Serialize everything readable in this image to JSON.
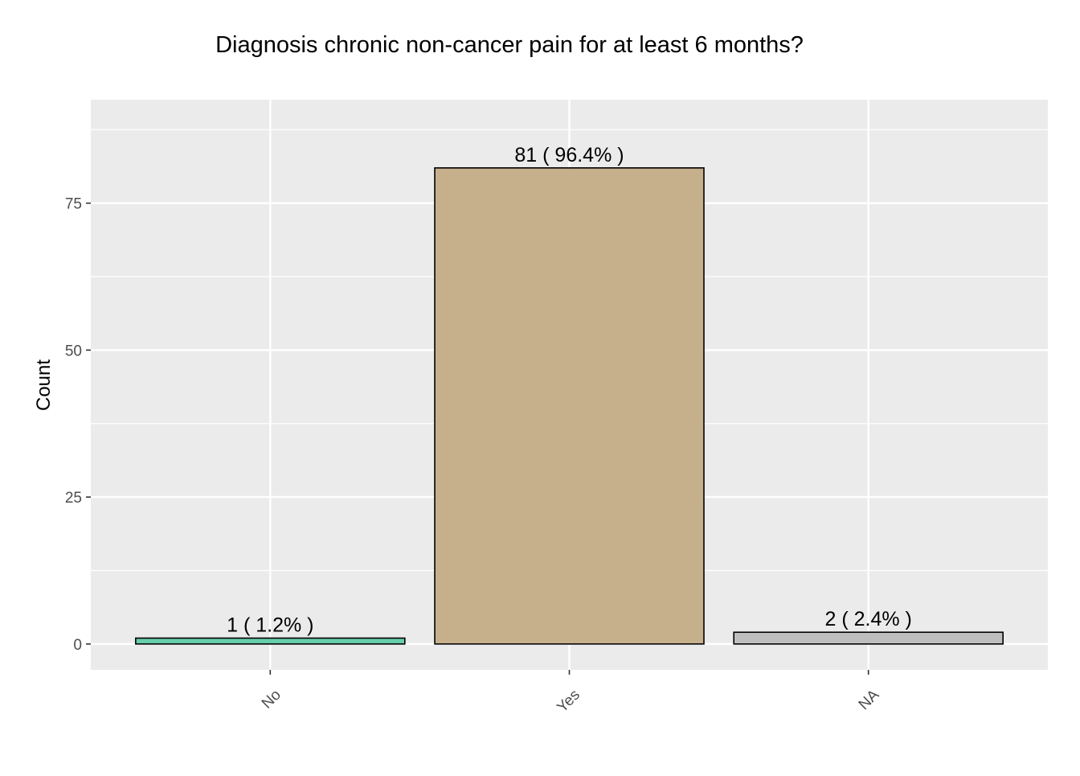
{
  "chart_data": {
    "type": "bar",
    "title": "Diagnosis chronic non-cancer pain for at least 6 months?",
    "xlabel": "",
    "ylabel": "Count",
    "categories": [
      "No",
      "Yes",
      "NA"
    ],
    "values": [
      1,
      81,
      2
    ],
    "labels": [
      "1 ( 1.2% )",
      "81 ( 96.4% )",
      "2 ( 2.4% )"
    ],
    "colors": [
      "#66CDAA",
      "#C6AF8B",
      "#BEBEBE"
    ],
    "ylim": [
      -4.4,
      92.6
    ],
    "yticks": [
      0,
      25,
      50,
      75
    ],
    "ytick_labels": [
      "0",
      "25",
      "50",
      "75"
    ],
    "grid": true,
    "legend": "none",
    "panel_background": "#EBEBEB",
    "grid_color": "#FFFFFF",
    "bar_outline": "#000000"
  }
}
